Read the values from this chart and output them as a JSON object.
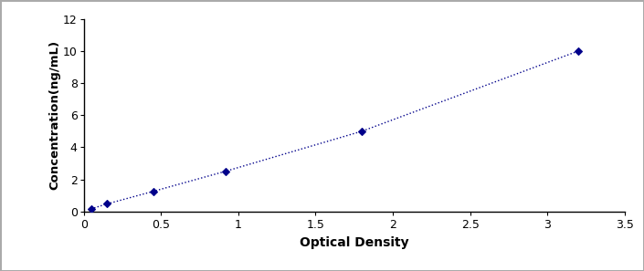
{
  "x_values": [
    0.047,
    0.152,
    0.45,
    0.917,
    1.8,
    3.2
  ],
  "y_values": [
    0.156,
    0.469,
    1.25,
    2.5,
    5.0,
    10.0
  ],
  "line_color": "#00008B",
  "marker_color": "#00008B",
  "marker_style": "D",
  "marker_size": 4,
  "line_width": 1.0,
  "line_style": ":",
  "xlabel": "Optical Density",
  "ylabel": "Concentration(ng/mL)",
  "xlim": [
    0,
    3.5
  ],
  "ylim": [
    0,
    12
  ],
  "xticks": [
    0,
    0.5,
    1.0,
    1.5,
    2.0,
    2.5,
    3.0,
    3.5
  ],
  "yticks": [
    0,
    2,
    4,
    6,
    8,
    10,
    12
  ],
  "xlabel_fontsize": 10,
  "ylabel_fontsize": 9.5,
  "tick_fontsize": 9,
  "background_color": "#ffffff",
  "outer_background": "#f0f0f0",
  "border_color": "#000000",
  "frame_color": "#aaaaaa"
}
